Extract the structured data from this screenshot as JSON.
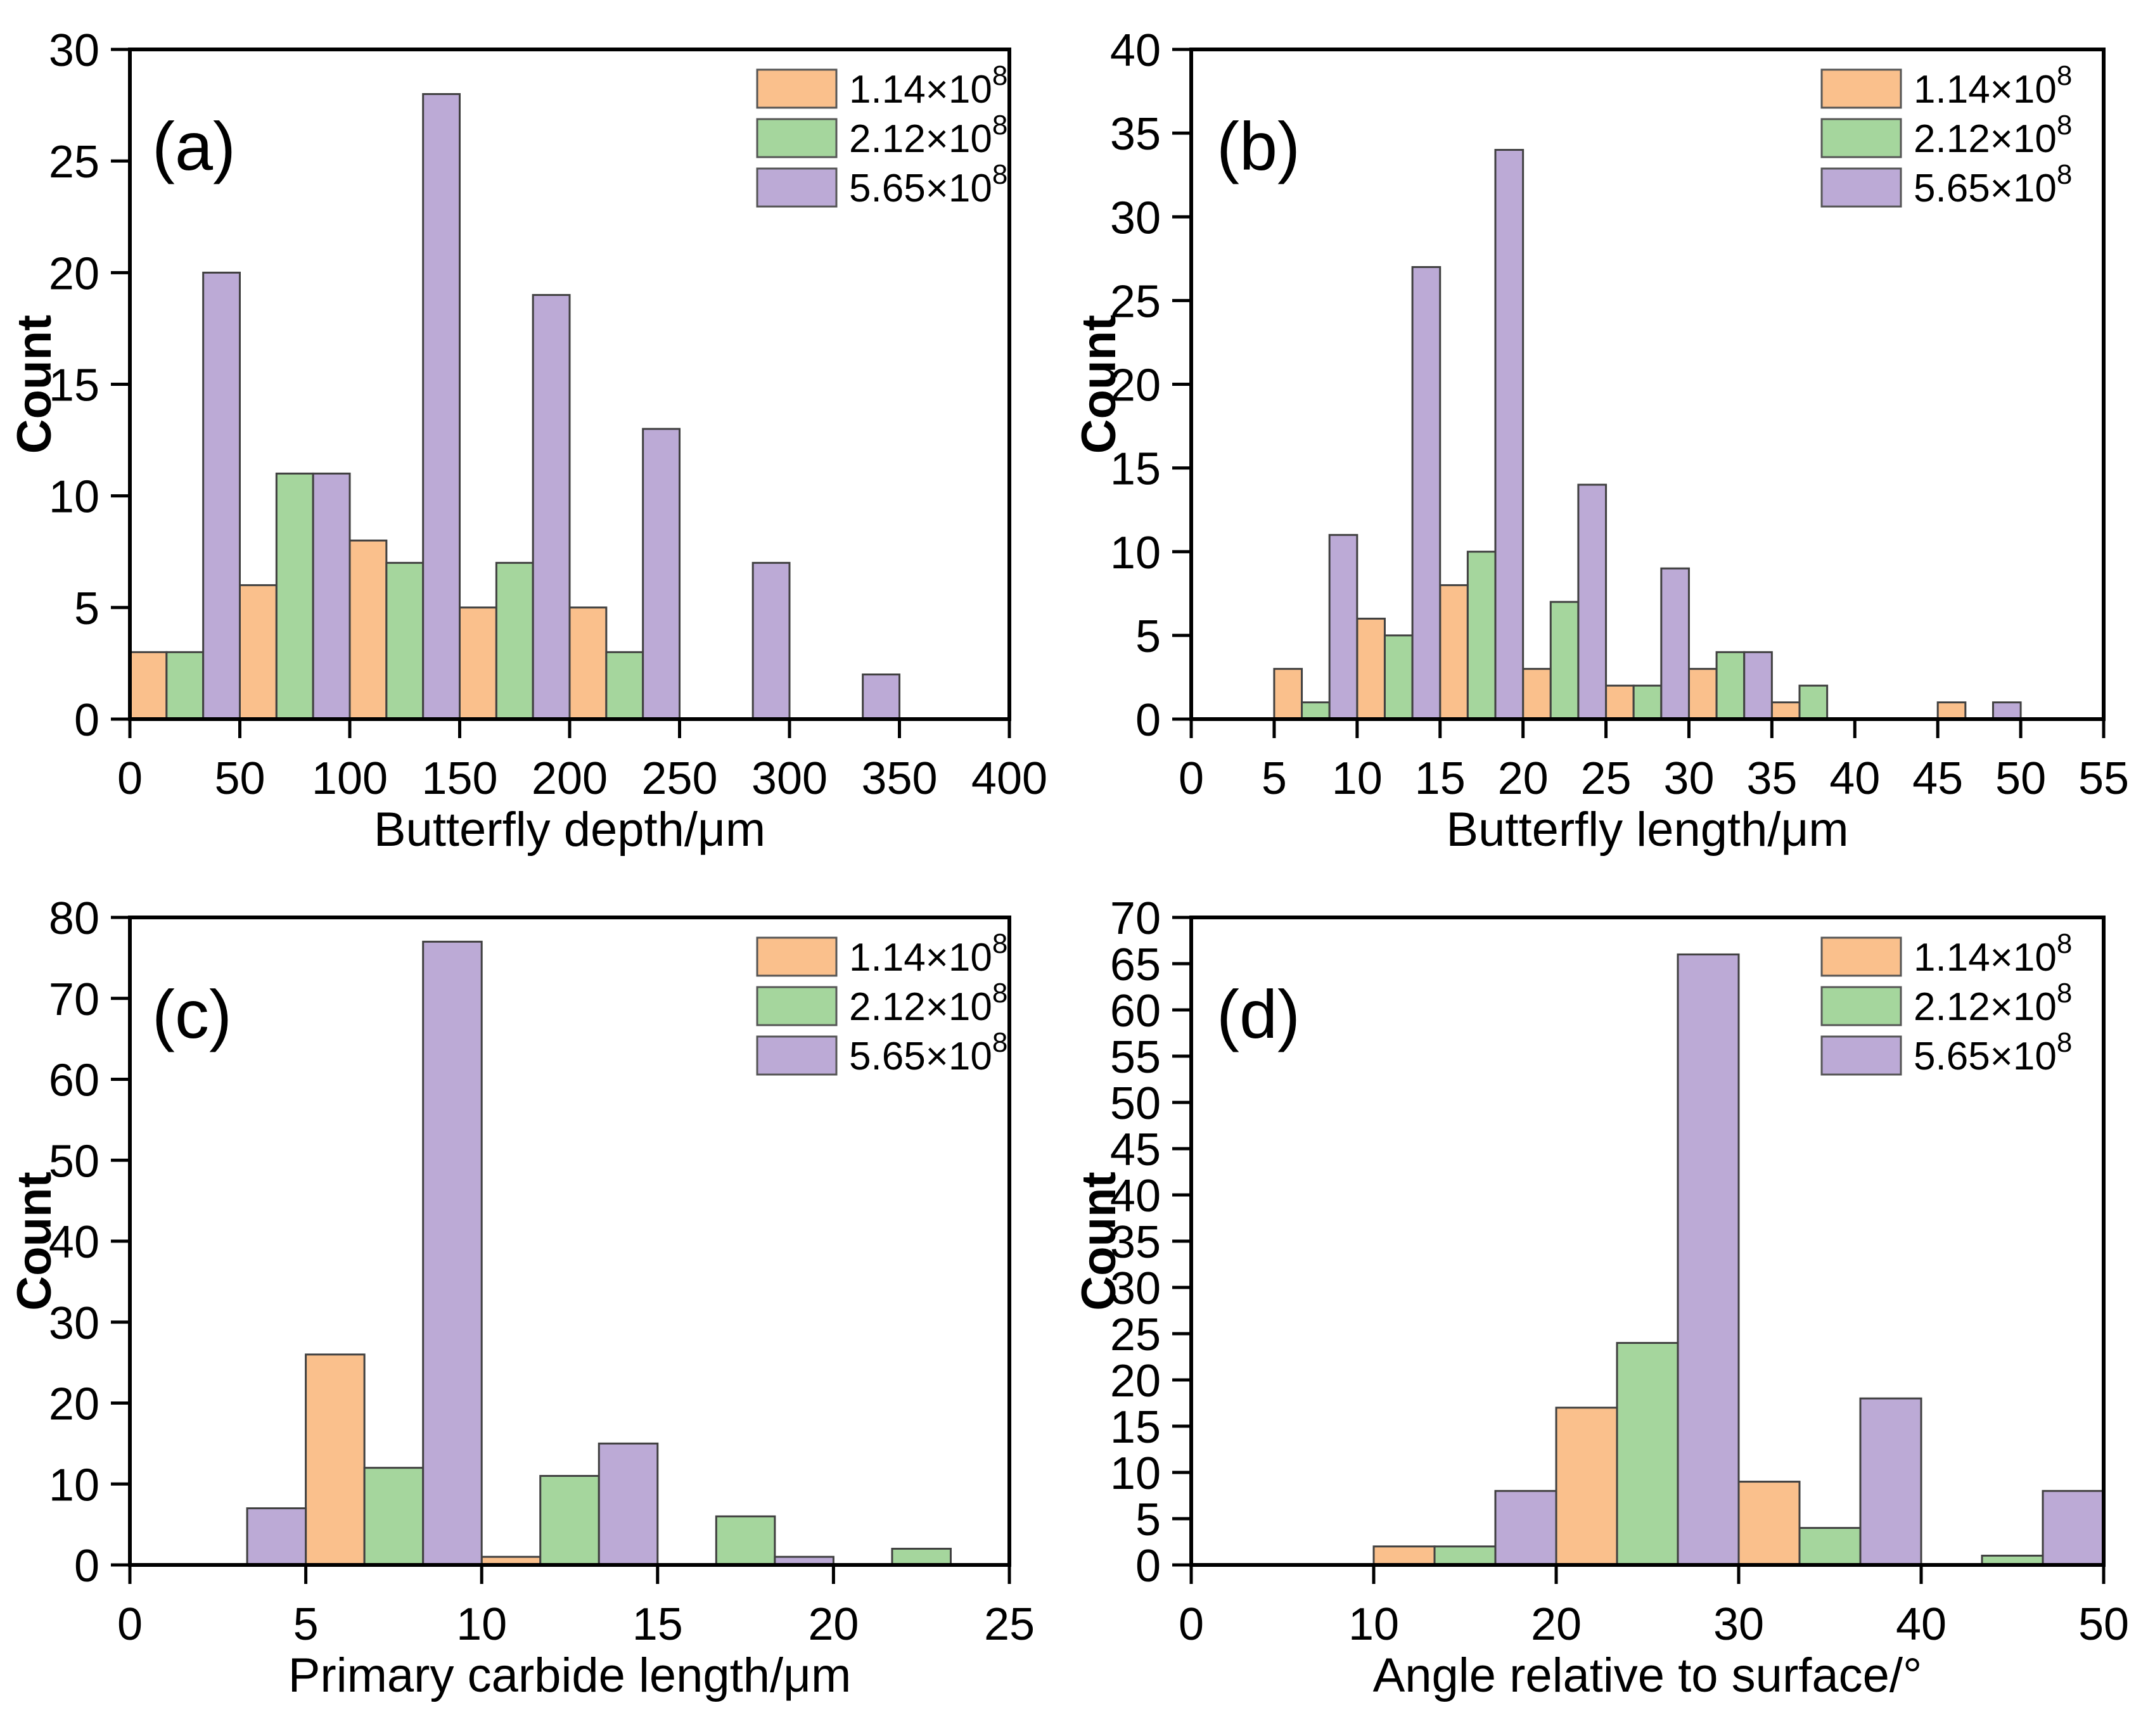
{
  "figure": {
    "background": "#ffffff",
    "ylabel": "Count",
    "bar_outline_color": "#404040",
    "axis_color": "#000000",
    "legend": [
      {
        "label": "1.14×10⁸",
        "label_base": "1.14×10",
        "label_exp": "8",
        "color": "#FAC08C"
      },
      {
        "label": "2.12×10⁸",
        "label_base": "2.12×10",
        "label_exp": "8",
        "color": "#A5D69D"
      },
      {
        "label": "5.65×10⁸",
        "label_base": "5.65×10",
        "label_exp": "8",
        "color": "#BCAAD6"
      }
    ]
  },
  "chart_data": [
    {
      "type": "bar",
      "panel_label": "(a)",
      "xlabel": "Butterfly depth/μm",
      "ylabel": "Count",
      "xlim": [
        0,
        400
      ],
      "ylim": [
        0,
        30
      ],
      "x_ticks": [
        0,
        50,
        100,
        150,
        200,
        250,
        300,
        350,
        400
      ],
      "y_ticks": [
        0,
        5,
        10,
        15,
        20,
        25,
        30
      ],
      "bin_width": 50,
      "bin_starts": [
        0,
        50,
        100,
        150,
        200,
        250,
        300
      ],
      "grid": false,
      "legend_position": "top-right",
      "series": [
        {
          "name": "1.14×10⁸",
          "values": [
            3,
            6,
            8,
            5,
            5,
            0,
            0
          ]
        },
        {
          "name": "2.12×10⁸",
          "values": [
            3,
            11,
            7,
            7,
            3,
            0,
            0
          ]
        },
        {
          "name": "5.65×10⁸",
          "values": [
            20,
            11,
            28,
            19,
            13,
            7,
            2
          ]
        }
      ]
    },
    {
      "type": "bar",
      "panel_label": "(b)",
      "xlabel": "Butterfly length/μm",
      "ylabel": "Count",
      "xlim": [
        0,
        55
      ],
      "ylim": [
        0,
        40
      ],
      "x_ticks": [
        0,
        5,
        10,
        15,
        20,
        25,
        30,
        35,
        40,
        45,
        50,
        55
      ],
      "y_ticks": [
        0,
        5,
        10,
        15,
        20,
        25,
        30,
        35,
        40
      ],
      "bin_width": 5,
      "bin_starts": [
        5,
        10,
        15,
        20,
        25,
        30,
        35,
        40,
        45
      ],
      "grid": false,
      "legend_position": "top-right",
      "series": [
        {
          "name": "1.14×10⁸",
          "values": [
            3,
            6,
            8,
            3,
            2,
            3,
            1,
            0,
            1
          ]
        },
        {
          "name": "2.12×10⁸",
          "values": [
            1,
            5,
            10,
            7,
            2,
            4,
            2,
            0,
            0
          ]
        },
        {
          "name": "5.65×10⁸",
          "values": [
            11,
            27,
            34,
            14,
            9,
            4,
            0,
            0,
            1
          ]
        }
      ]
    },
    {
      "type": "bar",
      "panel_label": "(c)",
      "xlabel": "Primary carbide length/μm",
      "ylabel": "Count",
      "xlim": [
        0,
        25
      ],
      "ylim": [
        0,
        80
      ],
      "x_ticks": [
        0,
        5,
        10,
        15,
        20,
        25
      ],
      "y_ticks": [
        0,
        10,
        20,
        30,
        40,
        50,
        60,
        70,
        80
      ],
      "bin_width": 5,
      "bin_starts": [
        0,
        5,
        10,
        15,
        20
      ],
      "grid": false,
      "legend_position": "top-right",
      "series": [
        {
          "name": "1.14×10⁸",
          "values": [
            0,
            26,
            1,
            0,
            0
          ]
        },
        {
          "name": "2.12×10⁸",
          "values": [
            0,
            12,
            11,
            6,
            2
          ]
        },
        {
          "name": "5.65×10⁸",
          "values": [
            7,
            77,
            15,
            1,
            0
          ]
        }
      ]
    },
    {
      "type": "bar",
      "panel_label": "(d)",
      "xlabel": "Angle relative to surface/°",
      "ylabel": "Count",
      "xlim": [
        0,
        50
      ],
      "ylim": [
        0,
        70
      ],
      "x_ticks": [
        0,
        10,
        20,
        30,
        40,
        50
      ],
      "y_ticks": [
        0,
        5,
        10,
        15,
        20,
        25,
        30,
        35,
        40,
        45,
        50,
        55,
        60,
        65,
        70
      ],
      "bin_width": 10,
      "bin_starts": [
        10,
        20,
        30,
        40
      ],
      "grid": false,
      "legend_position": "top-right",
      "series": [
        {
          "name": "1.14×10⁸",
          "values": [
            2,
            17,
            9,
            0
          ]
        },
        {
          "name": "2.12×10⁸",
          "values": [
            2,
            24,
            4,
            1
          ]
        },
        {
          "name": "5.65×10⁸",
          "values": [
            8,
            66,
            18,
            8
          ]
        }
      ]
    }
  ]
}
